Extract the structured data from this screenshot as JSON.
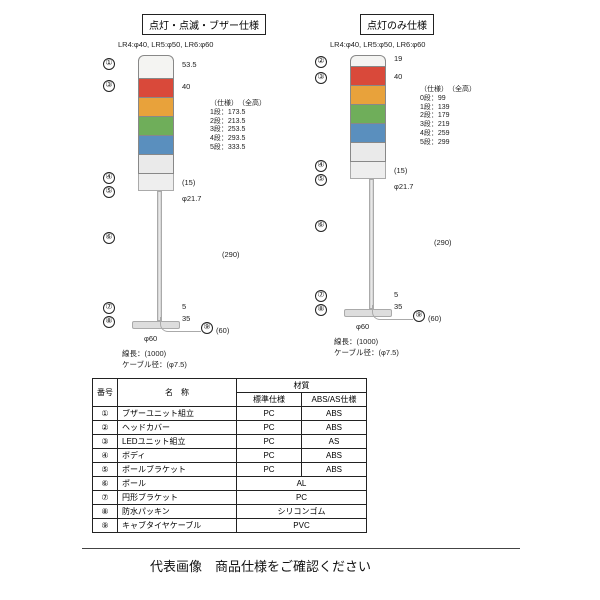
{
  "headers": {
    "left": "点灯・点滅・ブザー仕様",
    "right": "点灯のみ仕様",
    "sub": "LR4:φ40, LR5:φ50, LR6:φ60"
  },
  "left": {
    "top_dim": "53.5",
    "seg_dim": "40",
    "spec_title": "（仕様）　（全高）",
    "specs": [
      "1段：173.5",
      "2段：213.5",
      "3段：253.5",
      "4段：293.5",
      "5段：333.5"
    ],
    "body_h": "(15)",
    "pole_d": "φ21.7",
    "pole_len": "(290)",
    "base_d": "φ60",
    "base_h1": "5",
    "base_h2": "35",
    "base_w": "(60)",
    "cable": "線長：(1000)\nケーブル径：(φ7.5)"
  },
  "right": {
    "top_dim": "19",
    "seg_dim": "40",
    "spec_title": "（仕様）　（全高）",
    "specs": [
      "0段：99",
      "1段：139",
      "2段：179",
      "3段：219",
      "4段：259",
      "5段：299"
    ],
    "body_h": "(15)",
    "pole_d": "φ21.7",
    "pole_len": "(290)",
    "base_d": "φ60",
    "base_h1": "5",
    "base_h2": "35",
    "base_w": "(60)",
    "cable": "線長：(1000)\nケーブル径：(φ7.5)"
  },
  "colors": {
    "white": "#f4f4f2",
    "red": "#d9493a",
    "amber": "#e8a23b",
    "green": "#6fae5a",
    "blue": "#5a8fbe",
    "clear": "#eaeaea"
  },
  "table": {
    "head": [
      "番号",
      "名　称",
      "標準仕様",
      "ABS/AS仕様"
    ],
    "super": "材質",
    "rows": [
      [
        "①",
        "ブザーユニット組立",
        "PC",
        "ABS"
      ],
      [
        "②",
        "ヘッドカバー",
        "PC",
        "ABS"
      ],
      [
        "③",
        "LEDユニット組立",
        "PC",
        "AS"
      ],
      [
        "④",
        "ボディ",
        "PC",
        "ABS"
      ],
      [
        "⑤",
        "ポールブラケット",
        "PC",
        "ABS"
      ],
      [
        "⑥",
        "ポール",
        "AL",
        ""
      ],
      [
        "⑦",
        "円形ブラケット",
        "PC",
        ""
      ],
      [
        "⑧",
        "防水パッキン",
        "シリコンゴム",
        ""
      ],
      [
        "⑨",
        "キャブタイヤケーブル",
        "PVC",
        ""
      ]
    ]
  },
  "footer": "代表画像　商品仕様をご確認ください",
  "callouts_left": [
    "①",
    "②",
    "③",
    "④",
    "⑤",
    "⑥",
    "⑦",
    "⑧",
    "⑨"
  ],
  "callouts_right": [
    "②",
    "③",
    "④",
    "⑤",
    "⑥",
    "⑦",
    "⑧",
    "⑨"
  ]
}
